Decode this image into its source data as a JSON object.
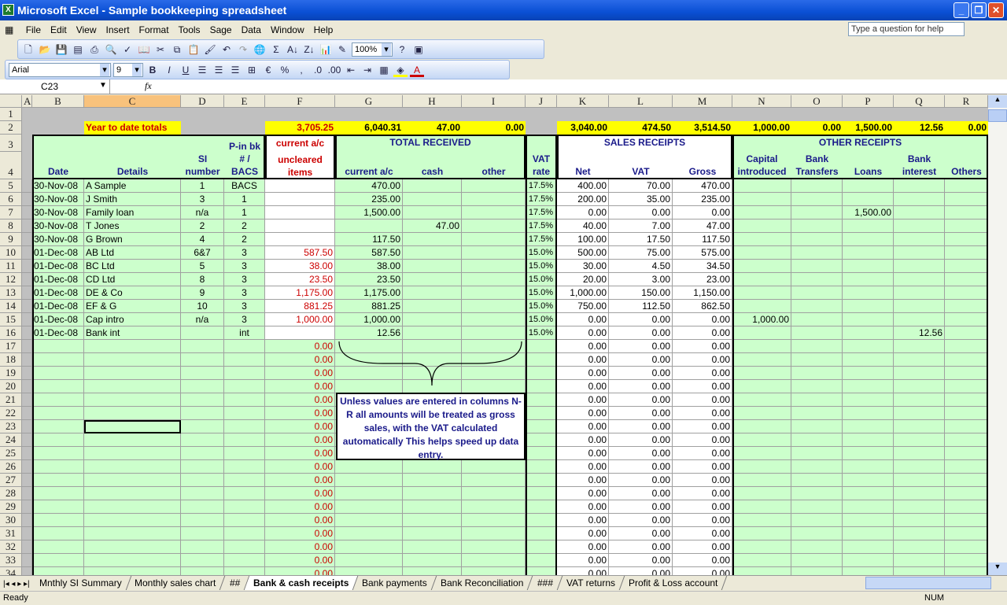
{
  "window": {
    "title": "Microsoft Excel - Sample bookkeeping spreadsheet",
    "help_placeholder": "Type a question for help"
  },
  "menu": [
    "File",
    "Edit",
    "View",
    "Insert",
    "Format",
    "Tools",
    "Sage",
    "Data",
    "Window",
    "Help"
  ],
  "toolbar": {
    "zoom": "100%",
    "font": "Arial",
    "size": "9",
    "bold": "B",
    "italic": "I",
    "underline": "U",
    "percent": "%",
    "comma": ","
  },
  "formula_bar": {
    "name_box": "C23",
    "fx": "fx",
    "value": ""
  },
  "columns": [
    "A",
    "B",
    "C",
    "D",
    "E",
    "F",
    "G",
    "H",
    "I",
    "J",
    "K",
    "L",
    "M",
    "N",
    "O",
    "P",
    "Q",
    "R"
  ],
  "selected_cell": "C23",
  "totals_label": "Year to date totals",
  "totals": {
    "F": "3,705.25",
    "G": "6,040.31",
    "H": "47.00",
    "I": "0.00",
    "K": "3,040.00",
    "L": "474.50",
    "M": "3,514.50",
    "N": "1,000.00",
    "O": "0.00",
    "P": "1,500.00",
    "Q": "12.56",
    "R": "0.00"
  },
  "headers": {
    "F3": "current a/c",
    "F4": "uncleared items",
    "G3": "TOTAL RECEIVED",
    "K3": "SALES RECEIPTS",
    "N3": "OTHER RECEIPTS",
    "B": "Date",
    "C": "Details",
    "D": "SI number",
    "E": "P-in bk # / BACS",
    "G": "current a/c",
    "H": "cash",
    "I": "other",
    "J": "VAT rate",
    "K": "Net",
    "L": "VAT",
    "M": "Gross",
    "N": "Capital introduced",
    "O": "Bank Transfers",
    "P": "Loans",
    "Q": "Bank interest",
    "R": "Others"
  },
  "rows": [
    {
      "B": "30-Nov-08",
      "C": "A Sample",
      "D": "1",
      "E": "BACS",
      "G": "470.00",
      "J": "17.5%",
      "K": "400.00",
      "L": "70.00",
      "M": "470.00"
    },
    {
      "B": "30-Nov-08",
      "C": "J Smith",
      "D": "3",
      "E": "1",
      "G": "235.00",
      "J": "17.5%",
      "K": "200.00",
      "L": "35.00",
      "M": "235.00"
    },
    {
      "B": "30-Nov-08",
      "C": "Family loan",
      "D": "n/a",
      "E": "1",
      "G": "1,500.00",
      "J": "17.5%",
      "K": "0.00",
      "L": "0.00",
      "M": "0.00",
      "P": "1,500.00"
    },
    {
      "B": "30-Nov-08",
      "C": "T Jones",
      "D": "2",
      "E": "2",
      "H": "47.00",
      "J": "17.5%",
      "K": "40.00",
      "L": "7.00",
      "M": "47.00"
    },
    {
      "B": "30-Nov-08",
      "C": "G Brown",
      "D": "4",
      "E": "2",
      "G": "117.50",
      "J": "17.5%",
      "K": "100.00",
      "L": "17.50",
      "M": "117.50"
    },
    {
      "B": "01-Dec-08",
      "C": "AB Ltd",
      "D": "6&7",
      "E": "3",
      "F": "587.50",
      "G": "587.50",
      "J": "15.0%",
      "K": "500.00",
      "L": "75.00",
      "M": "575.00"
    },
    {
      "B": "01-Dec-08",
      "C": "BC Ltd",
      "D": "5",
      "E": "3",
      "F": "38.00",
      "G": "38.00",
      "J": "15.0%",
      "K": "30.00",
      "L": "4.50",
      "M": "34.50"
    },
    {
      "B": "01-Dec-08",
      "C": "CD Ltd",
      "D": "8",
      "E": "3",
      "F": "23.50",
      "G": "23.50",
      "J": "15.0%",
      "K": "20.00",
      "L": "3.00",
      "M": "23.00"
    },
    {
      "B": "01-Dec-08",
      "C": "DE & Co",
      "D": "9",
      "E": "3",
      "F": "1,175.00",
      "G": "1,175.00",
      "J": "15.0%",
      "K": "1,000.00",
      "L": "150.00",
      "M": "1,150.00"
    },
    {
      "B": "01-Dec-08",
      "C": "EF & G",
      "D": "10",
      "E": "3",
      "F": "881.25",
      "G": "881.25",
      "J": "15.0%",
      "K": "750.00",
      "L": "112.50",
      "M": "862.50"
    },
    {
      "B": "01-Dec-08",
      "C": "Cap intro",
      "D": "n/a",
      "E": "3",
      "F": "1,000.00",
      "G": "1,000.00",
      "J": "15.0%",
      "K": "0.00",
      "L": "0.00",
      "M": "0.00",
      "N": "1,000.00"
    },
    {
      "B": "01-Dec-08",
      "C": "Bank int",
      "E": "int",
      "G": "12.56",
      "J": "15.0%",
      "K": "0.00",
      "L": "0.00",
      "M": "0.00",
      "Q": "12.56"
    }
  ],
  "empty_row_values": {
    "F": "0.00",
    "K": "0.00",
    "L": "0.00",
    "M": "0.00"
  },
  "note": "Unless values are entered in columns N-R all amounts will be treated as gross sales, with the VAT calculated automatically This helps speed up data entry.",
  "sheet_tabs": [
    "Mnthly SI Summary",
    "Monthly sales chart",
    "##",
    "Bank & cash receipts",
    "Bank payments",
    "Bank Reconciliation",
    "###",
    "VAT returns",
    "Profit & Loss account"
  ],
  "active_tab": "Bank & cash receipts",
  "status": {
    "left": "Ready",
    "num": "NUM"
  },
  "colors": {
    "green": "#ccffcc",
    "yellow": "#ffff00",
    "title_red": "#cc0000",
    "header_blue": "#1a1a8a",
    "titlebar": "#0a4fd4"
  }
}
